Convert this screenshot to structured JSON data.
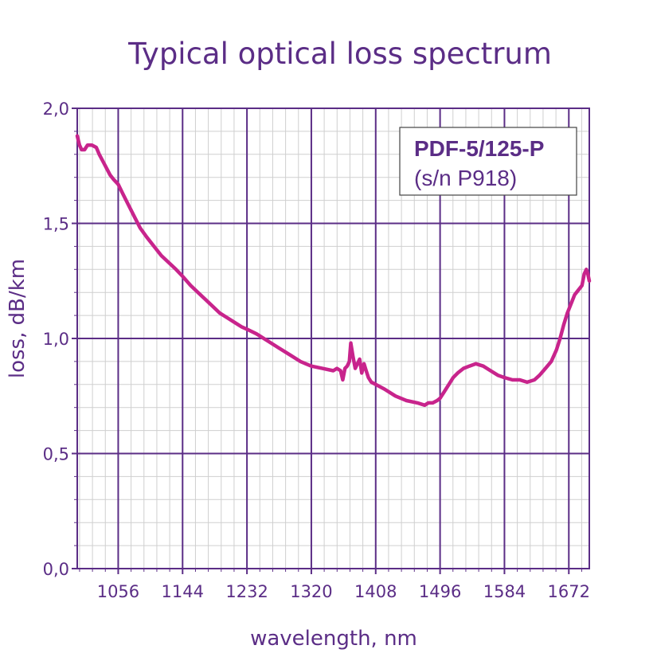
{
  "chart_data": {
    "type": "line",
    "title": "Typical optical loss spectrum",
    "xlabel": "wavelength, nm",
    "ylabel": "loss, dB/km",
    "xlim": [
      1000,
      1700
    ],
    "ylim": [
      0,
      2.0
    ],
    "x_ticks": [
      1056,
      1144,
      1232,
      1320,
      1408,
      1496,
      1584,
      1672
    ],
    "x_tick_labels": [
      "1056",
      "1144",
      "1232",
      "1320",
      "1408",
      "1496",
      "1584",
      "1672"
    ],
    "y_ticks": [
      0,
      0.5,
      1.0,
      1.5,
      2.0
    ],
    "y_tick_labels": [
      "0,0",
      "0,5",
      "1,0",
      "1,5",
      "2,0"
    ],
    "grid": true,
    "legend": {
      "position": "top-right",
      "title": "PDF-5/125-P",
      "subtitle": "(s/n P918)"
    },
    "colors": {
      "line": "#c8248c",
      "text": "#5b2d86",
      "major_grid": "#5b2d86",
      "minor_grid": "#cfcfcf"
    },
    "series": [
      {
        "x": [
          1000,
          1003,
          1006,
          1010,
          1014,
          1020,
          1026,
          1030,
          1035,
          1040,
          1045,
          1050,
          1056,
          1062,
          1070,
          1078,
          1086,
          1095,
          1105,
          1115,
          1125,
          1135,
          1144,
          1155,
          1165,
          1175,
          1185,
          1195,
          1205,
          1215,
          1225,
          1232,
          1245,
          1260,
          1275,
          1290,
          1305,
          1320,
          1335,
          1350,
          1355,
          1360,
          1363,
          1366,
          1369,
          1372,
          1374,
          1377,
          1380,
          1383,
          1386,
          1389,
          1392,
          1395,
          1398,
          1402,
          1408,
          1420,
          1435,
          1450,
          1465,
          1475,
          1480,
          1486,
          1492,
          1496,
          1502,
          1508,
          1514,
          1520,
          1528,
          1536,
          1545,
          1555,
          1565,
          1575,
          1584,
          1595,
          1605,
          1615,
          1625,
          1632,
          1640,
          1648,
          1655,
          1660,
          1665,
          1670,
          1675,
          1680,
          1685,
          1690,
          1693,
          1696,
          1698,
          1700
        ],
        "y": [
          1.88,
          1.84,
          1.82,
          1.82,
          1.84,
          1.84,
          1.83,
          1.8,
          1.77,
          1.74,
          1.71,
          1.69,
          1.67,
          1.63,
          1.58,
          1.53,
          1.48,
          1.44,
          1.4,
          1.36,
          1.33,
          1.3,
          1.27,
          1.23,
          1.2,
          1.17,
          1.14,
          1.11,
          1.09,
          1.07,
          1.05,
          1.04,
          1.02,
          0.99,
          0.96,
          0.93,
          0.9,
          0.88,
          0.87,
          0.86,
          0.87,
          0.86,
          0.82,
          0.87,
          0.88,
          0.9,
          0.98,
          0.92,
          0.87,
          0.89,
          0.91,
          0.85,
          0.89,
          0.86,
          0.83,
          0.81,
          0.8,
          0.78,
          0.75,
          0.73,
          0.72,
          0.71,
          0.72,
          0.72,
          0.73,
          0.74,
          0.77,
          0.8,
          0.83,
          0.85,
          0.87,
          0.88,
          0.89,
          0.88,
          0.86,
          0.84,
          0.83,
          0.82,
          0.82,
          0.81,
          0.82,
          0.84,
          0.87,
          0.9,
          0.95,
          1.0,
          1.06,
          1.11,
          1.15,
          1.19,
          1.21,
          1.23,
          1.28,
          1.3,
          1.28,
          1.25
        ]
      }
    ]
  }
}
